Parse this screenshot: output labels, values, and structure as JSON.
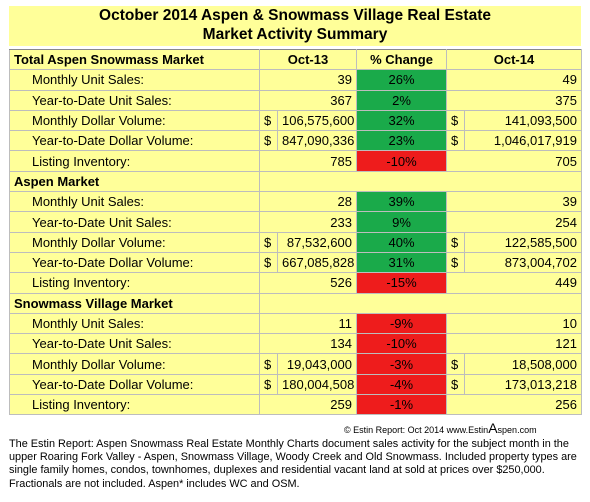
{
  "title": {
    "line1": "October 2014 Aspen & Snowmass Village Real Estate",
    "line2": "Market Activity Summary"
  },
  "headers": {
    "col_prev": "Oct-13",
    "col_change": "% Change",
    "col_curr": "Oct-14"
  },
  "sections": [
    {
      "name": "Total Aspen Snowmass Market",
      "rows": [
        {
          "label": "Monthly Unit Sales:",
          "prev": "39",
          "change": "26%",
          "curr": "49",
          "trend": "pos",
          "dollar": false
        },
        {
          "label": "Year-to-Date Unit Sales:",
          "prev": "367",
          "change": "2%",
          "curr": "375",
          "trend": "pos",
          "dollar": false
        },
        {
          "label": "Monthly Dollar Volume:",
          "prev": "106,575,600",
          "change": "32%",
          "curr": "141,093,500",
          "trend": "pos",
          "dollar": true
        },
        {
          "label": "Year-to-Date Dollar Volume:",
          "prev": "847,090,336",
          "change": "23%",
          "curr": "1,046,017,919",
          "trend": "pos",
          "dollar": true
        },
        {
          "label": "Listing Inventory:",
          "prev": "785",
          "change": "-10%",
          "curr": "705",
          "trend": "neg",
          "dollar": false
        }
      ]
    },
    {
      "name": "Aspen Market",
      "rows": [
        {
          "label": "Monthly Unit Sales:",
          "prev": "28",
          "change": "39%",
          "curr": "39",
          "trend": "pos",
          "dollar": false
        },
        {
          "label": "Year-to-Date Unit Sales:",
          "prev": "233",
          "change": "9%",
          "curr": "254",
          "trend": "pos",
          "dollar": false
        },
        {
          "label": "Monthly Dollar Volume:",
          "prev": "87,532,600",
          "change": "40%",
          "curr": "122,585,500",
          "trend": "pos",
          "dollar": true
        },
        {
          "label": "Year-to-Date Dollar Volume:",
          "prev": "667,085,828",
          "change": "31%",
          "curr": "873,004,702",
          "trend": "pos",
          "dollar": true
        },
        {
          "label": "Listing Inventory:",
          "prev": "526",
          "change": "-15%",
          "curr": "449",
          "trend": "neg",
          "dollar": false
        }
      ]
    },
    {
      "name": "Snowmass Village Market",
      "rows": [
        {
          "label": "Monthly Unit Sales:",
          "prev": "11",
          "change": "-9%",
          "curr": "10",
          "trend": "neg",
          "dollar": false
        },
        {
          "label": "Year-to-Date Unit Sales:",
          "prev": "134",
          "change": "-10%",
          "curr": "121",
          "trend": "neg",
          "dollar": false
        },
        {
          "label": "Monthly Dollar Volume:",
          "prev": "19,043,000",
          "change": "-3%",
          "curr": "18,508,000",
          "trend": "neg",
          "dollar": true
        },
        {
          "label": "Year-to-Date Dollar Volume:",
          "prev": "180,004,508",
          "change": "-4%",
          "curr": "173,013,218",
          "trend": "neg",
          "dollar": true
        },
        {
          "label": "Listing Inventory:",
          "prev": "259",
          "change": "-1%",
          "curr": "256",
          "trend": "neg",
          "dollar": false
        }
      ]
    }
  ],
  "currency_symbol": "$",
  "colors": {
    "positive": "#1aaa4a",
    "negative": "#ee1c1c",
    "background": "#ffff99"
  },
  "copyright": {
    "prefix": "© Estin Report: Oct 2014 www.Estin",
    "big_letter": "A",
    "suffix": "spen.com"
  },
  "footnote": "The Estin Report: Aspen Snowmass Real Estate Monthly Charts document sales activity for the subject month in the upper Roaring Fork Valley - Aspen, Snowmass Village, Woody Creek and Old Snowmass. Included property types are single family homes, condos, townhomes, duplexes and residential vacant land at sold at prices over $250,000. Fractionals are not included. Aspen* includes WC and OSM."
}
